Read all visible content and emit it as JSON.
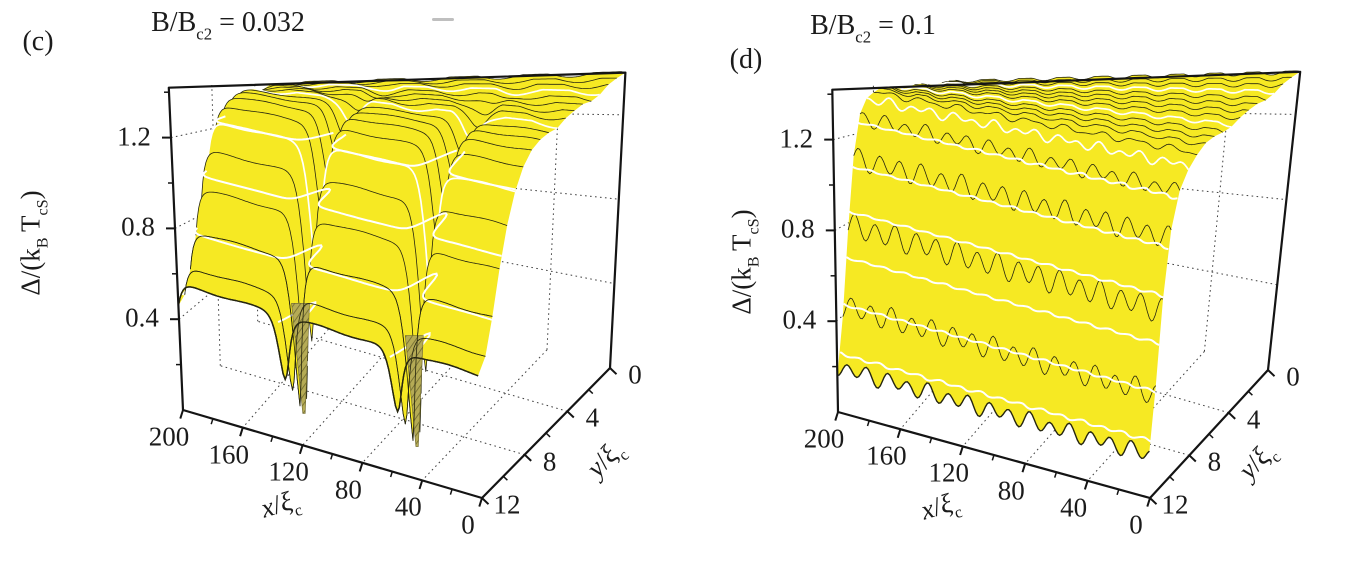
{
  "figure": {
    "background": "#ffffff",
    "corner_labels": [
      "(c)",
      "(d)"
    ]
  },
  "colors": {
    "surface": "#f6e923",
    "surface_underside": "#b5ab55",
    "underside_hatch": "#6e682f",
    "contour": "#26260f",
    "highlight": "#ffffff",
    "frame": "#141414",
    "grid": "#3f3f3f",
    "text": "#1b1b1b",
    "background": "#ffffff"
  },
  "chart_data": [
    {
      "panel": "c",
      "type": "surface",
      "title_parts": [
        {
          "t": "B/B"
        },
        {
          "t": "c2",
          "sub": true
        },
        {
          "t": " = 0.032"
        }
      ],
      "xlabel_parts": [
        {
          "t": "x",
          "it": true
        },
        {
          "t": "/"
        },
        {
          "t": "ξ",
          "it": true
        },
        {
          "t": "c",
          "sub": true
        }
      ],
      "ylabel_parts": [
        {
          "t": "y",
          "it": true
        },
        {
          "t": "/"
        },
        {
          "t": "ξ",
          "it": true
        },
        {
          "t": "c",
          "sub": true
        }
      ],
      "zlabel_parts": [
        {
          "t": "Δ/(k"
        },
        {
          "t": "B",
          "sub": true
        },
        {
          "t": " T"
        },
        {
          "t": "cS",
          "sub": true
        },
        {
          "t": ")"
        }
      ],
      "x_ticks": [
        200,
        160,
        120,
        80,
        40,
        0
      ],
      "x_minor_ticks": [
        180,
        140,
        100,
        60,
        20
      ],
      "y_ticks": [
        0,
        4,
        8,
        12
      ],
      "y_minor_ticks": [
        2,
        6,
        10
      ],
      "z_ticks": [
        0.4,
        0.8,
        1.2
      ],
      "z_minor_ticks": [
        0.2,
        0.6,
        1.0,
        1.4
      ],
      "x_range": [
        0,
        200
      ],
      "y_range": [
        0,
        12
      ],
      "z_range": [
        0,
        1.42
      ],
      "grid": "dotted",
      "surface": {
        "kind": "vortex",
        "plateau": 1.4,
        "front_edge_value": 0.56,
        "edge_drop": 0.84,
        "edge_width": 2.55,
        "vortex_x": [
          205,
          130,
          55,
          -20
        ],
        "vortex_y": 10.3,
        "vortex_core": 5.0,
        "vortex_y_aniso": 1.6,
        "ripple_amp": 0.015
      },
      "white_levels": [
        0.25,
        0.5,
        0.75,
        1.0,
        1.25
      ]
    },
    {
      "panel": "d",
      "type": "surface",
      "title_parts": [
        {
          "t": "B/B"
        },
        {
          "t": "c2",
          "sub": true
        },
        {
          "t": " = 0.1"
        }
      ],
      "xlabel_parts": [
        {
          "t": "x",
          "it": true
        },
        {
          "t": "/"
        },
        {
          "t": "ξ",
          "it": true
        },
        {
          "t": "c",
          "sub": true
        }
      ],
      "ylabel_parts": [
        {
          "t": "y",
          "it": true
        },
        {
          "t": "/"
        },
        {
          "t": "ξ",
          "it": true
        },
        {
          "t": "c",
          "sub": true
        }
      ],
      "zlabel_parts": [
        {
          "t": "Δ/(k"
        },
        {
          "t": "B",
          "sub": true
        },
        {
          "t": " T"
        },
        {
          "t": "cS",
          "sub": true
        },
        {
          "t": ")"
        }
      ],
      "x_ticks": [
        200,
        160,
        120,
        80,
        40,
        0
      ],
      "x_minor_ticks": [
        180,
        140,
        100,
        60,
        20
      ],
      "y_ticks": [
        0,
        4,
        8,
        12
      ],
      "y_minor_ticks": [
        2,
        6,
        10
      ],
      "z_ticks": [
        0.4,
        0.8,
        1.2
      ],
      "z_minor_ticks": [
        0.2,
        0.6,
        1.0,
        1.4
      ],
      "x_range": [
        0,
        200
      ],
      "y_range": [
        0,
        12
      ],
      "z_range": [
        0,
        1.42
      ],
      "grid": "dotted",
      "surface": {
        "kind": "wavy",
        "plateau": 1.4,
        "front_edge_value": 0.19,
        "edge_drop": 1.24,
        "edge_center": 12.35,
        "edge_width": 2.0,
        "osc_amp": 0.05,
        "osc_period": 13,
        "osc_phase_y": 0.7,
        "osc_y_center": 10.7,
        "osc_y_width": 1.9,
        "ripple_amp": 0.012
      },
      "white_levels": [
        0.25,
        0.45,
        0.65,
        0.85,
        1.05,
        1.25
      ]
    }
  ],
  "artifacts": [
    {
      "kind": "scan-smudge"
    }
  ]
}
